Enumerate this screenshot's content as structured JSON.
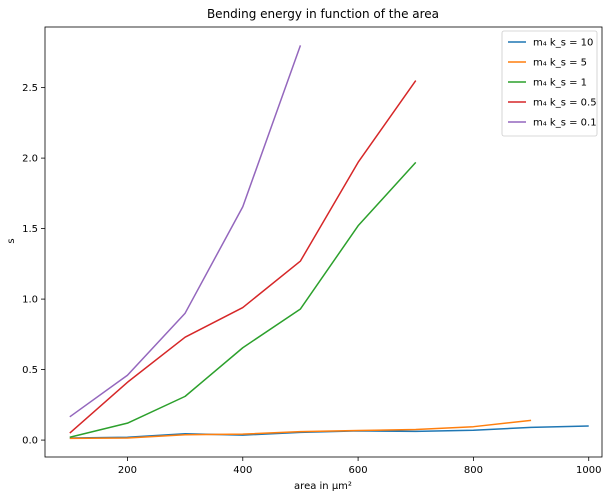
{
  "chart_data": {
    "type": "line",
    "title": "Bending energy in function of the area",
    "xlabel": "area in μm²",
    "ylabel": "s",
    "xlim": [
      57,
      1023
    ],
    "ylim": [
      -0.12,
      2.93
    ],
    "xticks": [
      200,
      400,
      600,
      800,
      1000
    ],
    "yticks": [
      0.0,
      0.5,
      1.0,
      1.5,
      2.0,
      2.5
    ],
    "legend_position": "top-right",
    "grid": false,
    "series": [
      {
        "name": "m₄ k_s = 10",
        "color": "#1f77b4",
        "x": [
          100,
          200,
          300,
          400,
          500,
          600,
          700,
          800,
          900,
          1000
        ],
        "y": [
          0.015,
          0.02,
          0.045,
          0.035,
          0.055,
          0.065,
          0.062,
          0.07,
          0.09,
          0.1
        ]
      },
      {
        "name": "m₄ k_s = 5",
        "color": "#ff7f0e",
        "x": [
          100,
          200,
          300,
          400,
          500,
          600,
          700,
          800,
          900
        ],
        "y": [
          0.012,
          0.015,
          0.038,
          0.042,
          0.06,
          0.068,
          0.075,
          0.095,
          0.14
        ]
      },
      {
        "name": "m₄ k_s = 1",
        "color": "#2ca02c",
        "x": [
          100,
          200,
          300,
          400,
          500,
          600,
          700
        ],
        "y": [
          0.02,
          0.12,
          0.31,
          0.655,
          0.93,
          1.52,
          1.97
        ]
      },
      {
        "name": "m₄  k_s = 0.5",
        "color": "#d62728",
        "x": [
          100,
          200,
          300,
          400,
          500,
          600,
          700
        ],
        "y": [
          0.05,
          0.41,
          0.73,
          0.94,
          1.27,
          1.97,
          2.55
        ]
      },
      {
        "name": "m₄ k_s = 0.1",
        "color": "#9467bd",
        "x": [
          100,
          200,
          300,
          400,
          500
        ],
        "y": [
          0.165,
          0.46,
          0.9,
          1.655,
          2.8
        ]
      }
    ]
  }
}
